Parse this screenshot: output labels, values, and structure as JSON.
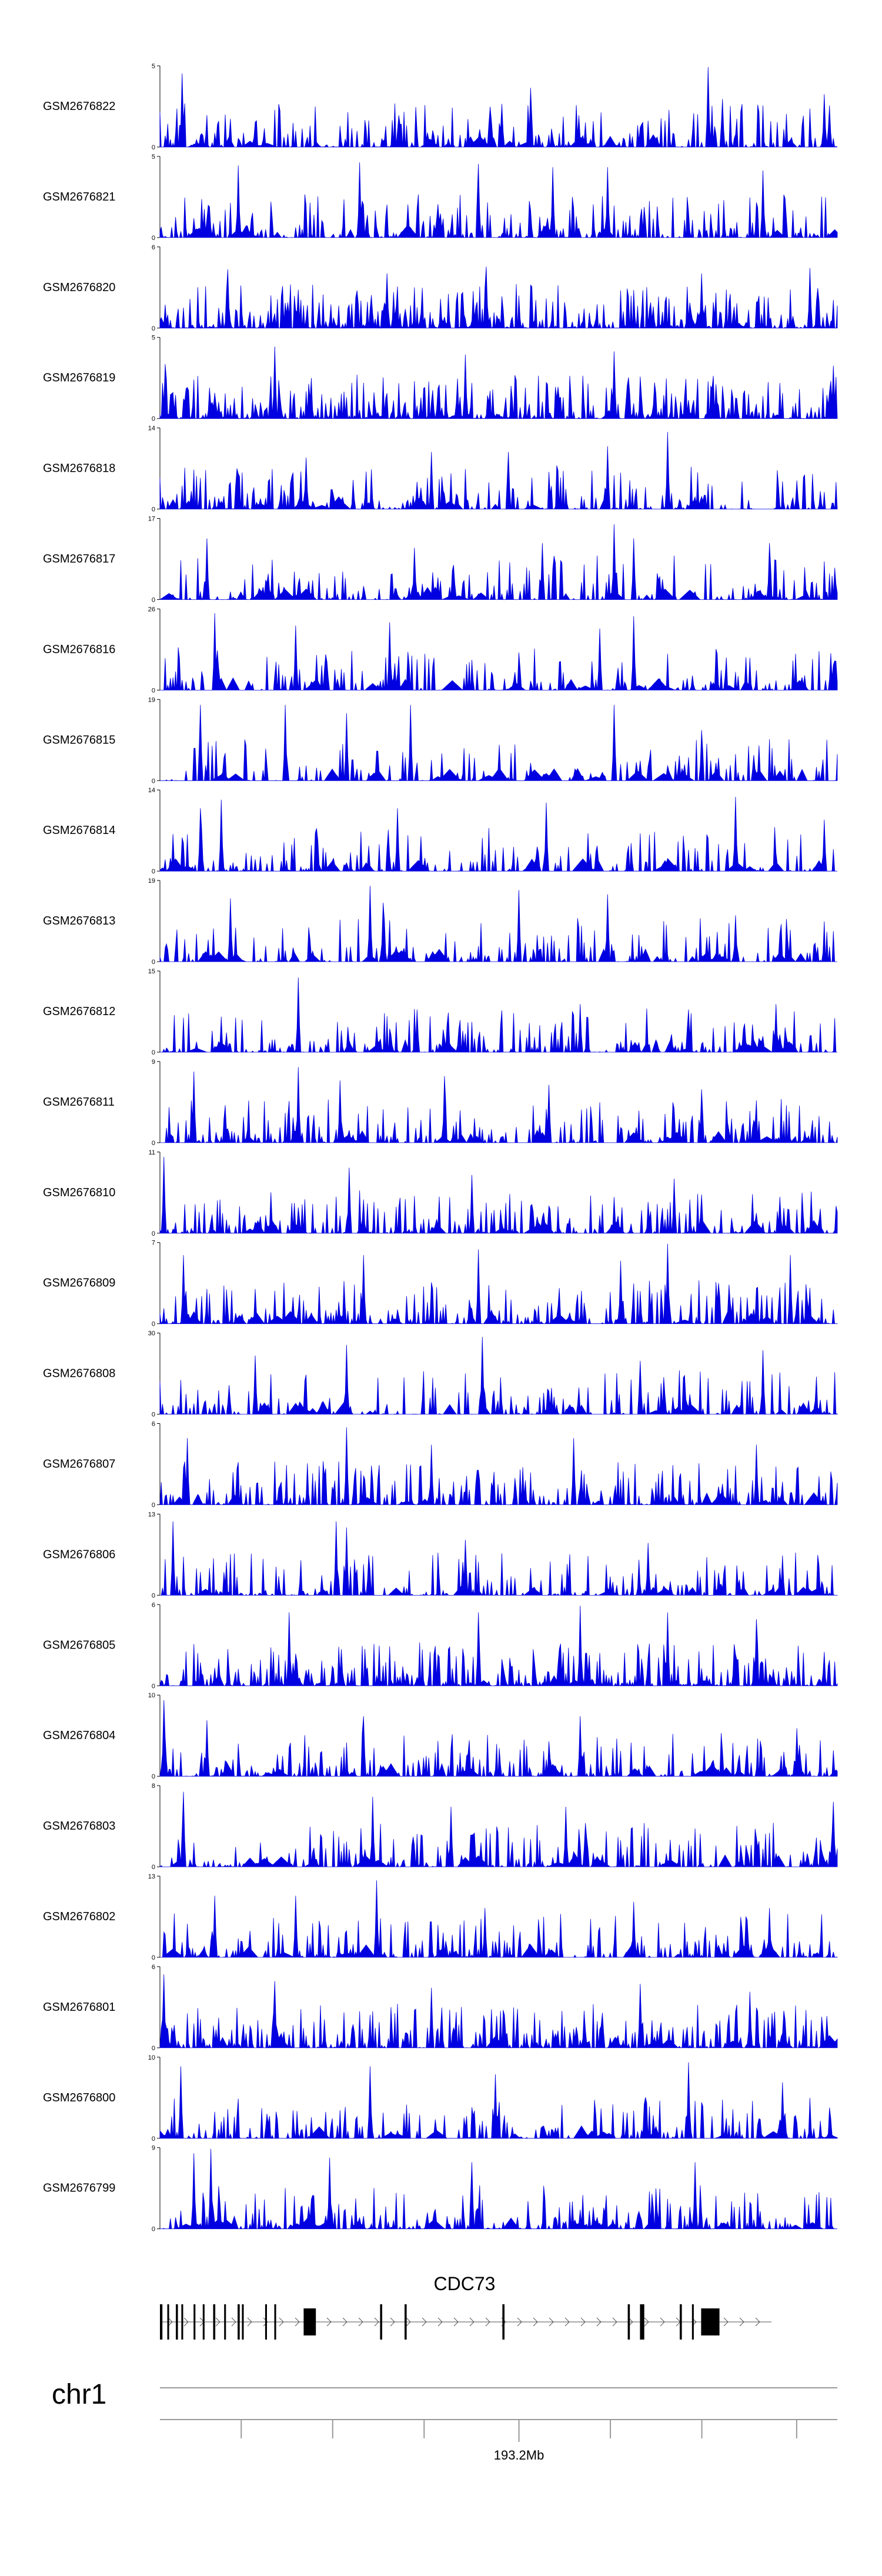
{
  "chart_data": {
    "type": "area",
    "series_color": "#0000e0",
    "tracks": [
      {
        "name": "GSM2676822",
        "ymax": 5,
        "ymin": 0,
        "seed": 22,
        "density": 0.62,
        "spikes": [
          [
            3.2,
            4.6
          ],
          [
            50.5,
            2.7
          ],
          [
            54.8,
            3.7
          ],
          [
            81,
            5
          ],
          [
            83,
            3.0
          ],
          [
            98,
            3.3
          ]
        ]
      },
      {
        "name": "GSM2676821",
        "ymax": 5,
        "ymin": 0,
        "seed": 21,
        "density": 0.66,
        "spikes": [
          [
            11.5,
            4.5
          ],
          [
            29.5,
            4.7
          ],
          [
            47,
            4.6
          ],
          [
            58,
            4.4
          ],
          [
            66,
            4.4
          ],
          [
            89,
            4.2
          ]
        ]
      },
      {
        "name": "GSM2676820",
        "ymax": 6,
        "ymin": 0,
        "seed": 20,
        "density": 0.92,
        "spikes": [
          [
            10,
            4.4
          ],
          [
            33.5,
            4.1
          ],
          [
            48.2,
            4.6
          ],
          [
            80,
            4.1
          ],
          [
            96,
            4.5
          ]
        ]
      },
      {
        "name": "GSM2676819",
        "ymax": 5,
        "ymin": 0,
        "seed": 19,
        "density": 0.88,
        "spikes": [
          [
            0.8,
            3.4
          ],
          [
            17,
            4.5
          ],
          [
            45,
            4.0
          ],
          [
            67,
            4.2
          ],
          [
            99.5,
            3.3
          ]
        ]
      },
      {
        "name": "GSM2676818",
        "ymax": 14,
        "ymin": 0,
        "seed": 18,
        "density": 0.48,
        "spikes": [
          [
            21.5,
            9
          ],
          [
            40,
            10
          ],
          [
            51.5,
            10
          ],
          [
            66,
            11
          ],
          [
            75,
            13.5
          ],
          [
            94,
            5
          ]
        ]
      },
      {
        "name": "GSM2676817",
        "ymax": 17,
        "ymin": 0,
        "seed": 17,
        "density": 0.46,
        "spikes": [
          [
            7,
            13
          ],
          [
            37.5,
            11
          ],
          [
            56.5,
            12
          ],
          [
            67,
            16
          ],
          [
            70,
            13
          ],
          [
            90,
            12
          ]
        ]
      },
      {
        "name": "GSM2676816",
        "ymax": 26,
        "ymin": 0,
        "seed": 16,
        "density": 0.44,
        "spikes": [
          [
            8,
            25
          ],
          [
            20,
            21
          ],
          [
            34,
            22
          ],
          [
            65,
            20
          ],
          [
            70,
            24
          ],
          [
            99,
            12
          ]
        ]
      },
      {
        "name": "GSM2676815",
        "ymax": 19,
        "ymin": 0,
        "seed": 15,
        "density": 0.42,
        "spikes": [
          [
            6,
            18
          ],
          [
            18.5,
            18
          ],
          [
            27.5,
            16
          ],
          [
            37,
            18
          ],
          [
            67,
            18
          ],
          [
            80,
            12
          ]
        ]
      },
      {
        "name": "GSM2676814",
        "ymax": 14,
        "ymin": 0,
        "seed": 14,
        "density": 0.46,
        "spikes": [
          [
            6,
            11
          ],
          [
            9,
            12.5
          ],
          [
            35,
            11
          ],
          [
            57,
            12
          ],
          [
            85,
            13
          ],
          [
            98,
            9
          ]
        ]
      },
      {
        "name": "GSM2676813",
        "ymax": 19,
        "ymin": 0,
        "seed": 13,
        "density": 0.46,
        "spikes": [
          [
            10.5,
            15
          ],
          [
            31,
            18
          ],
          [
            33,
            14
          ],
          [
            53,
            17
          ],
          [
            66,
            16
          ],
          [
            85,
            11
          ]
        ]
      },
      {
        "name": "GSM2676812",
        "ymax": 15,
        "ymin": 0,
        "seed": 12,
        "density": 0.58,
        "spikes": [
          [
            20.5,
            14
          ],
          [
            38,
            8
          ],
          [
            62,
            9
          ],
          [
            78,
            8
          ],
          [
            91,
            9
          ]
        ]
      },
      {
        "name": "GSM2676811",
        "ymax": 9,
        "ymin": 0,
        "seed": 11,
        "density": 0.58,
        "spikes": [
          [
            5,
            8
          ],
          [
            20.5,
            8.5
          ],
          [
            26.5,
            7
          ],
          [
            42,
            7.5
          ],
          [
            57.5,
            6.5
          ],
          [
            80,
            6
          ]
        ]
      },
      {
        "name": "GSM2676810",
        "ymax": 11,
        "ymin": 0,
        "seed": 10,
        "density": 0.6,
        "spikes": [
          [
            0.5,
            10.5
          ],
          [
            28,
            9
          ],
          [
            46,
            8
          ],
          [
            76,
            7.5
          ],
          [
            91.5,
            5
          ]
        ]
      },
      {
        "name": "GSM2676809",
        "ymax": 7,
        "ymin": 0,
        "seed": 9,
        "density": 0.6,
        "spikes": [
          [
            3.5,
            6
          ],
          [
            30,
            6
          ],
          [
            47,
            6.5
          ],
          [
            68,
            5.5
          ],
          [
            75,
            7
          ],
          [
            93,
            6
          ]
        ]
      },
      {
        "name": "GSM2676808",
        "ymax": 30,
        "ymin": 0,
        "seed": 8,
        "density": 0.5,
        "spikes": [
          [
            14,
            22
          ],
          [
            27.5,
            26
          ],
          [
            47.5,
            29
          ],
          [
            71,
            20
          ],
          [
            89,
            24
          ]
        ]
      },
      {
        "name": "GSM2676807",
        "ymax": 6,
        "ymin": 0,
        "seed": 7,
        "density": 0.64,
        "spikes": [
          [
            4,
            5
          ],
          [
            27.5,
            5.8
          ],
          [
            40,
            4.5
          ],
          [
            61,
            5
          ],
          [
            88,
            4.5
          ]
        ]
      },
      {
        "name": "GSM2676806",
        "ymax": 13,
        "ymin": 0,
        "seed": 6,
        "density": 0.56,
        "spikes": [
          [
            2,
            12
          ],
          [
            26,
            12
          ],
          [
            27.5,
            11
          ],
          [
            45,
            9
          ],
          [
            72,
            8.5
          ],
          [
            92,
            6
          ]
        ]
      },
      {
        "name": "GSM2676805",
        "ymax": 6,
        "ymin": 0,
        "seed": 5,
        "density": 0.85,
        "spikes": [
          [
            19,
            5.5
          ],
          [
            47,
            5.5
          ],
          [
            62,
            6
          ],
          [
            75,
            5.5
          ],
          [
            88,
            5
          ]
        ]
      },
      {
        "name": "GSM2676804",
        "ymax": 10,
        "ymin": 0,
        "seed": 4,
        "density": 0.58,
        "spikes": [
          [
            0.5,
            9.5
          ],
          [
            7,
            7
          ],
          [
            30,
            7.5
          ],
          [
            62,
            7.5
          ],
          [
            94,
            6
          ]
        ]
      },
      {
        "name": "GSM2676803",
        "ymax": 8,
        "ymin": 0,
        "seed": 3,
        "density": 0.58,
        "spikes": [
          [
            3.5,
            7.5
          ],
          [
            31.5,
            7
          ],
          [
            43,
            6
          ],
          [
            60,
            6
          ],
          [
            99.5,
            6.5
          ]
        ]
      },
      {
        "name": "GSM2676802",
        "ymax": 13,
        "ymin": 0,
        "seed": 2,
        "density": 0.56,
        "spikes": [
          [
            8,
            10
          ],
          [
            20,
            10
          ],
          [
            32,
            12.5
          ],
          [
            48,
            8
          ],
          [
            70,
            9
          ],
          [
            90,
            8
          ]
        ]
      },
      {
        "name": "GSM2676801",
        "ymax": 6,
        "ymin": 0,
        "seed": 1,
        "density": 0.7,
        "spikes": [
          [
            0.5,
            5.5
          ],
          [
            17,
            5
          ],
          [
            40,
            4.5
          ],
          [
            71,
            4.8
          ],
          [
            87,
            4.2
          ]
        ]
      },
      {
        "name": "GSM2676800",
        "ymax": 10,
        "ymin": 0,
        "seed": 100,
        "density": 0.58,
        "spikes": [
          [
            3,
            9
          ],
          [
            31,
            9
          ],
          [
            49.5,
            8
          ],
          [
            78,
            9.5
          ],
          [
            92,
            7
          ]
        ]
      },
      {
        "name": "GSM2676799",
        "ymax": 9,
        "ymin": 0,
        "seed": 99,
        "density": 0.6,
        "spikes": [
          [
            5,
            8.5
          ],
          [
            7.5,
            9
          ],
          [
            25,
            8
          ],
          [
            46,
            7.5
          ],
          [
            79,
            7.5
          ]
        ]
      }
    ],
    "gene": {
      "name": "CDC73",
      "strand": "+",
      "exons": [
        [
          0,
          0.4
        ],
        [
          1.2,
          0.3
        ],
        [
          2.6,
          0.35
        ],
        [
          3.5,
          0.3
        ],
        [
          5.5,
          0.3
        ],
        [
          7,
          0.3
        ],
        [
          8.7,
          0.35
        ],
        [
          10.5,
          0.3
        ],
        [
          12.7,
          0.35
        ],
        [
          13.4,
          0.3
        ],
        [
          17.2,
          0.3
        ],
        [
          18.7,
          0.3
        ],
        [
          23.5,
          2.0
        ],
        [
          36,
          0.35
        ],
        [
          40,
          0.35
        ],
        [
          56,
          0.35
        ],
        [
          76.5,
          0.35
        ],
        [
          78.5,
          0.7
        ],
        [
          85,
          0.35
        ],
        [
          87,
          0.3
        ],
        [
          88.5,
          3.0
        ]
      ]
    },
    "chromosome": "chr1",
    "axis": {
      "tick_positions": [
        12,
        25.5,
        39,
        53,
        66.5,
        80,
        94
      ],
      "labeled_tick": {
        "position": 53,
        "label": "193.2Mb"
      }
    }
  }
}
